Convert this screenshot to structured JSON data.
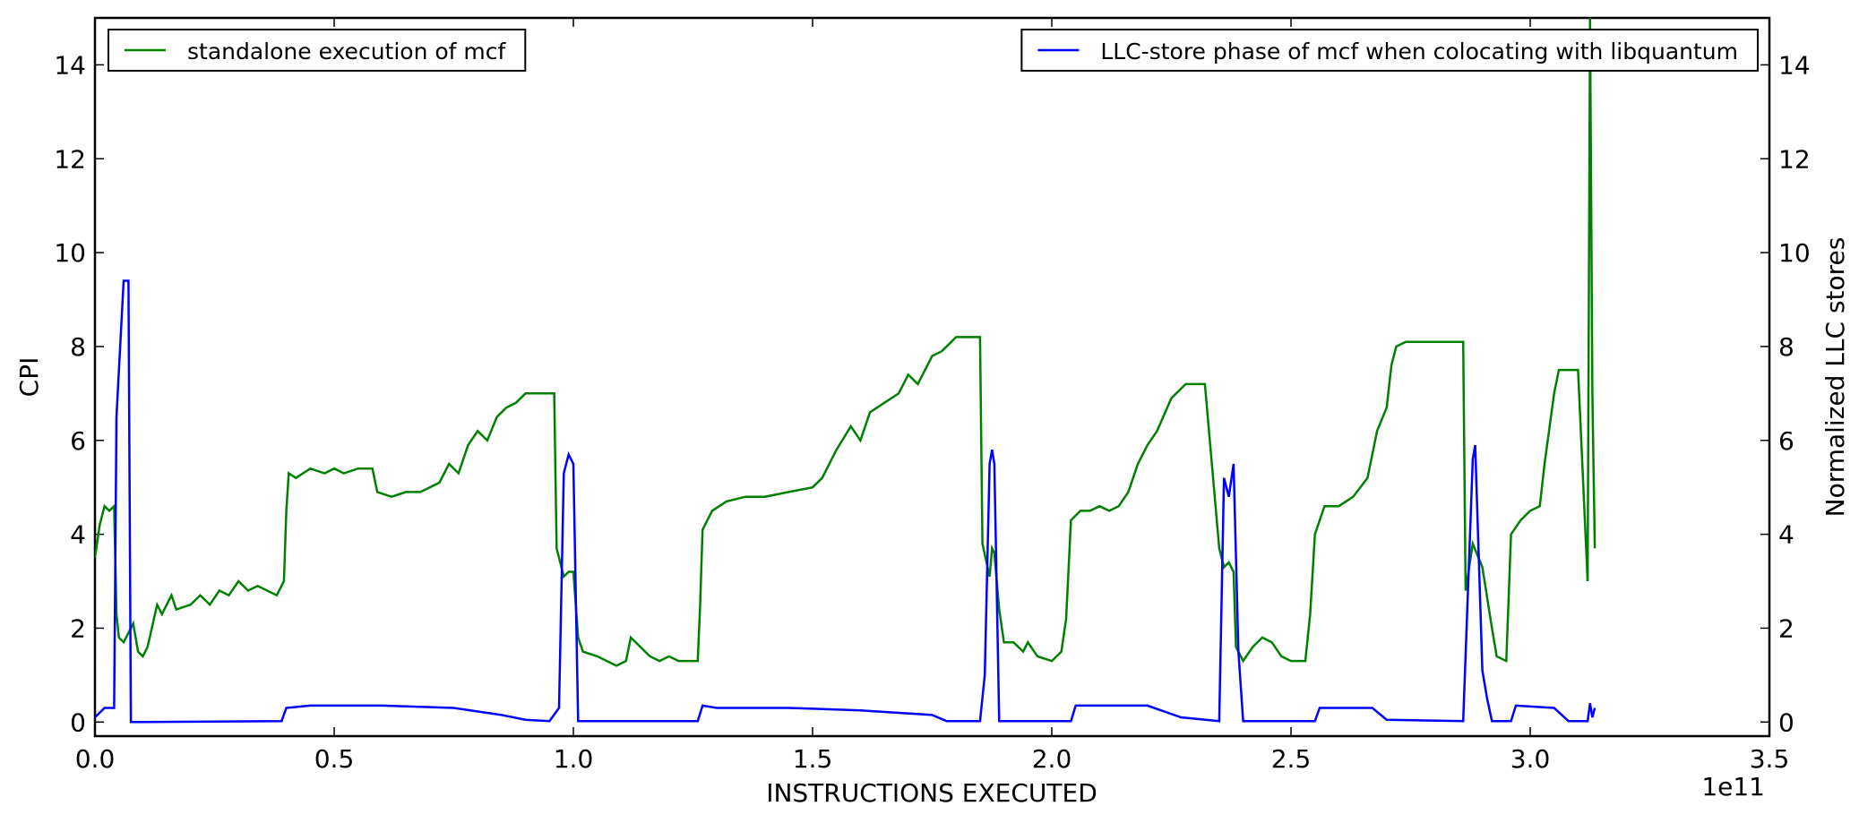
{
  "chart_data": {
    "type": "line",
    "xlabel": "INSTRUCTIONS EXECUTED",
    "ylabel": "CPI",
    "y2label": "Normalized LLC stores",
    "x_offset_label": "1e11",
    "xlim": [
      0,
      3.5
    ],
    "ylim": [
      -0.3,
      15
    ],
    "y2lim": [
      -0.3,
      15
    ],
    "xticks": [
      {
        "value": 0,
        "label": "0.0"
      },
      0.5,
      {
        "value": 1,
        "label": "1.0"
      },
      1.5,
      {
        "value": 2,
        "label": "2.0"
      },
      2.5,
      {
        "value": 3,
        "label": "3.0"
      },
      3.5
    ],
    "yticks": [
      0,
      2,
      4,
      6,
      8,
      10,
      12,
      14
    ],
    "y2ticks": [
      0,
      2,
      4,
      6,
      8,
      10,
      12,
      14
    ],
    "grid": false,
    "series": [
      {
        "name": "standalone execution of mcf",
        "color": "#008000",
        "legend": "upper left",
        "x": [
          0.0,
          0.01,
          0.02,
          0.03,
          0.04,
          0.045,
          0.05,
          0.06,
          0.07,
          0.08,
          0.09,
          0.1,
          0.11,
          0.13,
          0.14,
          0.16,
          0.17,
          0.2,
          0.22,
          0.24,
          0.26,
          0.28,
          0.3,
          0.32,
          0.34,
          0.36,
          0.38,
          0.395,
          0.4,
          0.405,
          0.42,
          0.45,
          0.48,
          0.5,
          0.52,
          0.55,
          0.58,
          0.59,
          0.62,
          0.65,
          0.68,
          0.7,
          0.72,
          0.74,
          0.76,
          0.78,
          0.8,
          0.82,
          0.84,
          0.86,
          0.88,
          0.9,
          0.92,
          0.95,
          0.96,
          0.965,
          0.97,
          0.98,
          0.99,
          1.0,
          1.01,
          1.02,
          1.05,
          1.07,
          1.09,
          1.11,
          1.12,
          1.14,
          1.16,
          1.18,
          1.2,
          1.22,
          1.24,
          1.26,
          1.265,
          1.27,
          1.29,
          1.32,
          1.36,
          1.4,
          1.45,
          1.5,
          1.52,
          1.55,
          1.58,
          1.6,
          1.62,
          1.65,
          1.68,
          1.7,
          1.72,
          1.75,
          1.77,
          1.79,
          1.8,
          1.82,
          1.84,
          1.85,
          1.855,
          1.87,
          1.875,
          1.88,
          1.89,
          1.9,
          1.92,
          1.94,
          1.95,
          1.97,
          2.0,
          2.02,
          2.03,
          2.04,
          2.06,
          2.08,
          2.1,
          2.12,
          2.14,
          2.16,
          2.18,
          2.2,
          2.22,
          2.25,
          2.28,
          2.3,
          2.32,
          2.35,
          2.36,
          2.37,
          2.38,
          2.385,
          2.4,
          2.42,
          2.44,
          2.46,
          2.48,
          2.5,
          2.53,
          2.54,
          2.55,
          2.57,
          2.6,
          2.63,
          2.66,
          2.68,
          2.7,
          2.71,
          2.72,
          2.74,
          2.76,
          2.78,
          2.8,
          2.82,
          2.84,
          2.86,
          2.865,
          2.88,
          2.9,
          2.92,
          2.93,
          2.95,
          2.96,
          2.98,
          3.0,
          3.02,
          3.03,
          3.05,
          3.06,
          3.08,
          3.1,
          3.12,
          3.125,
          3.13,
          3.135
        ],
        "values": [
          3.5,
          4.2,
          4.6,
          4.5,
          4.6,
          2.3,
          1.8,
          1.7,
          1.9,
          2.1,
          1.5,
          1.4,
          1.6,
          2.5,
          2.3,
          2.7,
          2.4,
          2.5,
          2.7,
          2.5,
          2.8,
          2.7,
          3.0,
          2.8,
          2.9,
          2.8,
          2.7,
          3.0,
          4.5,
          5.3,
          5.2,
          5.4,
          5.3,
          5.4,
          5.3,
          5.4,
          5.4,
          4.9,
          4.8,
          4.9,
          4.9,
          5.0,
          5.1,
          5.5,
          5.3,
          5.9,
          6.2,
          6.0,
          6.5,
          6.7,
          6.8,
          7.0,
          7.0,
          7.0,
          7.0,
          3.7,
          3.5,
          3.1,
          3.2,
          3.2,
          1.8,
          1.5,
          1.4,
          1.3,
          1.2,
          1.3,
          1.8,
          1.6,
          1.4,
          1.3,
          1.4,
          1.3,
          1.3,
          1.3,
          2.5,
          4.1,
          4.5,
          4.7,
          4.8,
          4.8,
          4.9,
          5.0,
          5.2,
          5.8,
          6.3,
          6.0,
          6.6,
          6.8,
          7.0,
          7.4,
          7.2,
          7.8,
          7.9,
          8.1,
          8.2,
          8.2,
          8.2,
          8.2,
          3.8,
          3.1,
          3.7,
          3.6,
          2.4,
          1.7,
          1.7,
          1.5,
          1.7,
          1.4,
          1.3,
          1.5,
          2.2,
          4.3,
          4.5,
          4.5,
          4.6,
          4.5,
          4.6,
          4.9,
          5.5,
          5.9,
          6.2,
          6.9,
          7.2,
          7.2,
          7.2,
          3.7,
          3.3,
          3.4,
          3.2,
          1.6,
          1.3,
          1.6,
          1.8,
          1.7,
          1.4,
          1.3,
          1.3,
          2.3,
          4.0,
          4.6,
          4.6,
          4.8,
          5.2,
          6.2,
          6.7,
          7.6,
          8.0,
          8.1,
          8.1,
          8.1,
          8.1,
          8.1,
          8.1,
          8.1,
          2.8,
          3.8,
          3.3,
          2.0,
          1.4,
          1.3,
          4.0,
          4.3,
          4.5,
          4.6,
          5.5,
          7.0,
          7.5,
          7.5,
          7.5,
          3.0,
          15,
          7,
          3.7
        ]
      },
      {
        "name": "LLC-store phase of mcf when colocating with libquantum",
        "color": "#0000ff",
        "legend": "upper right",
        "axis": "y2",
        "x": [
          0,
          0.02,
          0.03,
          0.04,
          0.045,
          0.06,
          0.07,
          0.075,
          0.1,
          0.39,
          0.4,
          0.45,
          0.6,
          0.75,
          0.85,
          0.9,
          0.95,
          0.97,
          0.98,
          0.99,
          1.0,
          1.01,
          1.26,
          1.27,
          1.3,
          1.45,
          1.6,
          1.75,
          1.78,
          1.85,
          1.86,
          1.87,
          1.875,
          1.88,
          1.89,
          2.04,
          2.05,
          2.2,
          2.27,
          2.35,
          2.36,
          2.37,
          2.38,
          2.39,
          2.4,
          2.55,
          2.56,
          2.67,
          2.7,
          2.86,
          2.88,
          2.885,
          2.9,
          2.91,
          2.92,
          2.96,
          2.97,
          3.05,
          3.08,
          3.12,
          3.125,
          3.13,
          3.135
        ],
        "values": [
          0.1,
          0.3,
          0.3,
          0.3,
          6.5,
          9.4,
          9.4,
          0,
          0,
          0.02,
          0.3,
          0.35,
          0.35,
          0.3,
          0.15,
          0.05,
          0.02,
          0.3,
          5.3,
          5.7,
          5.5,
          0.02,
          0.02,
          0.35,
          0.3,
          0.3,
          0.25,
          0.15,
          0.02,
          0.02,
          1.0,
          5.5,
          5.8,
          5.5,
          0.02,
          0.02,
          0.35,
          0.35,
          0.1,
          0.02,
          5.2,
          4.8,
          5.5,
          1.5,
          0.02,
          0.02,
          0.3,
          0.3,
          0.05,
          0.02,
          5.6,
          5.9,
          1.1,
          0.5,
          0.02,
          0.02,
          0.35,
          0.3,
          0.02,
          0.02,
          0.4,
          0.1,
          0.3
        ]
      }
    ]
  }
}
